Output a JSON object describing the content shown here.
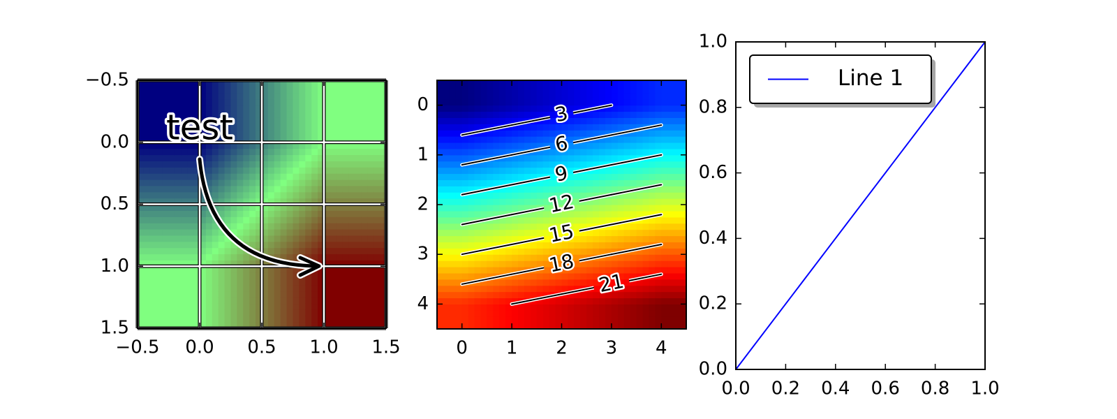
{
  "chart_data": [
    {
      "type": "image",
      "z": [
        [
          0,
          1
        ],
        [
          1,
          2
        ]
      ],
      "colormap": [
        "#000080",
        "#80ff80",
        "#800000"
      ],
      "xlim": [
        -0.5,
        1.5
      ],
      "ylim": [
        1.5,
        -0.5
      ],
      "xticks": [
        {
          "value": -0.5,
          "label": "−0.5"
        },
        {
          "value": 0,
          "label": "0.0"
        },
        0.5,
        {
          "value": 1,
          "label": "1.0"
        },
        1.5
      ],
      "yticks": [
        {
          "value": -0.5,
          "label": "−0.5"
        },
        {
          "value": 0,
          "label": "0.0"
        },
        0.5,
        {
          "value": 1,
          "label": "1.0"
        },
        1.5
      ],
      "grid": true,
      "annotation": "test"
    },
    {
      "type": "contour",
      "z": [
        [
          0,
          1,
          2,
          3,
          4
        ],
        [
          5,
          6,
          7,
          8,
          9
        ],
        [
          10,
          11,
          12,
          13,
          14
        ],
        [
          15,
          16,
          17,
          18,
          19
        ],
        [
          20,
          21,
          22,
          23,
          24
        ]
      ],
      "colormap": [
        "#00007f",
        "#0000ff",
        "#007fff",
        "#00ffff",
        "#7fff7f",
        "#ffff00",
        "#ff7f00",
        "#ff0000",
        "#7f0000"
      ],
      "levels": [
        3,
        6,
        9,
        12,
        15,
        18,
        21
      ],
      "xlim": [
        -0.5,
        4.5
      ],
      "ylim": [
        4.5,
        -0.5
      ],
      "xticks": [
        0,
        1,
        2,
        3,
        4
      ],
      "yticks": [
        0,
        1,
        2,
        3,
        4
      ]
    },
    {
      "type": "line",
      "x": [
        0,
        1
      ],
      "series": [
        {
          "name": "Line 1",
          "color": "#0000ff",
          "values": [
            0,
            1
          ]
        }
      ],
      "xlim": [
        0,
        1
      ],
      "ylim": [
        0,
        1
      ],
      "xticks": [
        {
          "value": 0,
          "label": "0.0"
        },
        0.2,
        0.4,
        0.6,
        0.8,
        {
          "value": 1,
          "label": "1.0"
        }
      ],
      "yticks": [
        {
          "value": 0,
          "label": "0.0"
        },
        0.2,
        0.4,
        0.6,
        0.8,
        {
          "value": 1,
          "label": "1.0"
        }
      ],
      "legend": "upper left"
    }
  ]
}
